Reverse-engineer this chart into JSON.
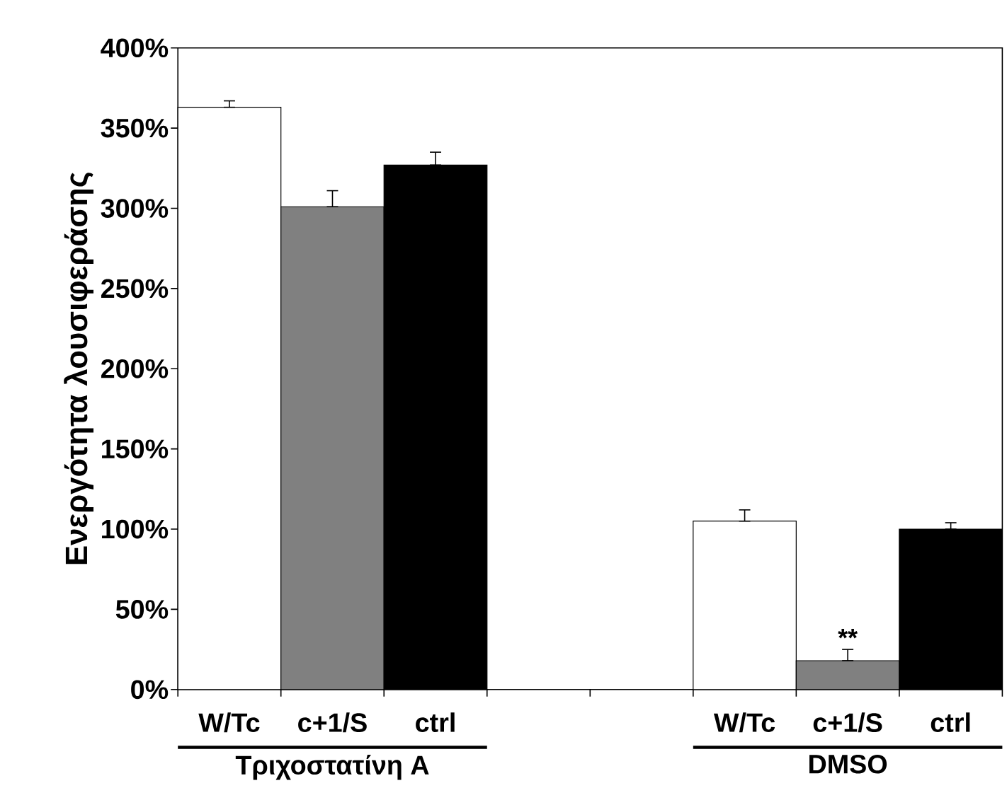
{
  "chart_data": {
    "type": "bar",
    "ylabel": "Ενεργότητα λουσιφεράσης",
    "categories": [
      "W/Tc",
      "c+1/S",
      "ctrl",
      null,
      null,
      "W/Tc",
      "c+1/S",
      "ctrl"
    ],
    "values": [
      363,
      301,
      327,
      null,
      null,
      105,
      18,
      100
    ],
    "errors": [
      [
        363,
        367
      ],
      [
        301,
        311
      ],
      [
        327,
        335
      ],
      null,
      null,
      [
        105,
        112
      ],
      [
        18,
        25
      ],
      [
        100,
        104
      ]
    ],
    "colors": [
      "#ffffff",
      "#808080",
      "#000000",
      null,
      null,
      "#ffffff",
      "#808080",
      "#000000"
    ],
    "ylim": [
      0,
      400
    ],
    "yticks": [
      {
        "value": 0,
        "label": "0%"
      },
      {
        "value": 50,
        "label": "50%"
      },
      {
        "value": 100,
        "label": "100%"
      },
      {
        "value": 150,
        "label": "150%"
      },
      {
        "value": 200,
        "label": "200%"
      },
      {
        "value": 250,
        "label": "250%"
      },
      {
        "value": 300,
        "label": "300%"
      },
      {
        "value": 350,
        "label": "350%"
      },
      {
        "value": 400,
        "label": "400%"
      }
    ],
    "annotations": [
      "Τριχοστατίνη A",
      "DMSO",
      "**"
    ],
    "grid": false
  }
}
